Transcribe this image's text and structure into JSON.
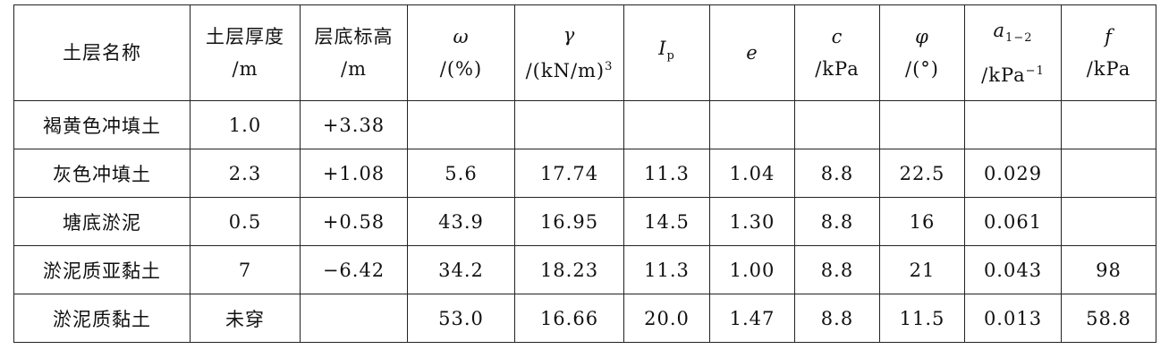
{
  "header": [
    [
      "土层名称"
    ],
    [
      "土层厚度",
      "/m"
    ],
    [
      "层底标高",
      "/m"
    ],
    [
      "ω",
      "/(%)"
    ],
    [
      "γ",
      "/(kN/m)",
      "3"
    ],
    [
      "I",
      "p"
    ],
    [
      "e"
    ],
    [
      "c",
      "/kPa"
    ],
    [
      "φ",
      "/(°)"
    ],
    [
      "a",
      "1−2",
      "/kPa",
      "−1"
    ],
    [
      "f",
      "/kPa"
    ]
  ],
  "rows": [
    [
      "褐黄色冲填土",
      "1.0",
      "+3.38",
      null,
      null,
      null,
      null,
      null,
      null,
      null,
      null
    ],
    [
      "灰色冲填土",
      "2.3",
      "+1.08",
      "5.6",
      "17.74",
      "11.3",
      "1.04",
      "8.8",
      "22.5",
      "0.029",
      null
    ],
    [
      "塘底淤泥",
      "0.5",
      "+0.58",
      "43.9",
      "16.95",
      "14.5",
      "1.30",
      "8.8",
      "16",
      "0.061",
      null
    ],
    [
      "淤泥质亚黏土",
      "7",
      "−6.42",
      "34.2",
      "18.23",
      "11.3",
      "1.00",
      "8.8",
      "21",
      "0.043",
      "98"
    ],
    [
      "淤泥质黏土",
      "未穿",
      null,
      "53.0",
      "16.66",
      "20.0",
      "1.47",
      "8.8",
      "11.5",
      "0.013",
      "58.8"
    ]
  ]
}
